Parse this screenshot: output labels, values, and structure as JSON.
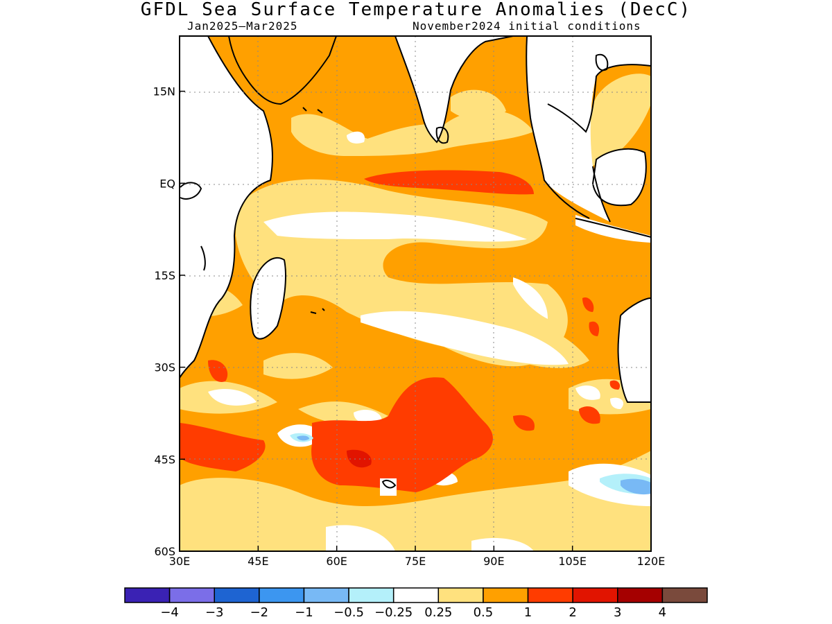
{
  "title": "GFDL Sea Surface Temperature Anomalies (DecC)",
  "period": "Jan2025–Mar2025",
  "initial_conditions": "November2024 initial conditions",
  "map": {
    "lon_range": [
      30,
      120
    ],
    "lat_range": [
      -60,
      24
    ],
    "lat_ticks": [
      {
        "lat": 15,
        "label": "15N"
      },
      {
        "lat": 0,
        "label": "EQ"
      },
      {
        "lat": -15,
        "label": "15S"
      },
      {
        "lat": -30,
        "label": "30S"
      },
      {
        "lat": -45,
        "label": "45S"
      },
      {
        "lat": -60,
        "label": "60S"
      }
    ],
    "lon_ticks": [
      {
        "lon": 30,
        "label": "30E"
      },
      {
        "lon": 45,
        "label": "45E"
      },
      {
        "lon": 60,
        "label": "60E"
      },
      {
        "lon": 75,
        "label": "75E"
      },
      {
        "lon": 90,
        "label": "90E"
      },
      {
        "lon": 105,
        "label": "105E"
      },
      {
        "lon": 120,
        "label": "120E"
      }
    ],
    "grid": "dotted"
  },
  "legend": {
    "colors": [
      "#3a22b4",
      "#7b6ee8",
      "#1e64d2",
      "#3c96f0",
      "#78b9f5",
      "#b4f0fa",
      "#ffffff",
      "#ffe17e",
      "#ffa000",
      "#ff3c00",
      "#e11400",
      "#a50000",
      "#7a4a3c"
    ],
    "labels": [
      "−4",
      "−3",
      "−2",
      "−1",
      "−0.5",
      "−0.25",
      "0.25",
      "0.5",
      "1",
      "2",
      "3",
      "4"
    ]
  }
}
